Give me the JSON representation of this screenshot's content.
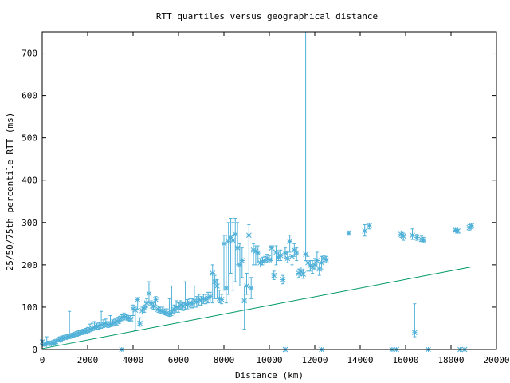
{
  "chart_data": {
    "type": "scatter",
    "title": "RTT quartiles versus geographical distance",
    "xlabel": "Distance (km)",
    "ylabel": "25/50/75th percentile RTT (ms)",
    "xlim": [
      0,
      20000
    ],
    "ylim": [
      0,
      750
    ],
    "xticks": [
      0,
      2000,
      4000,
      6000,
      8000,
      10000,
      12000,
      14000,
      16000,
      18000,
      20000
    ],
    "yticks": [
      0,
      100,
      200,
      300,
      400,
      500,
      600,
      700
    ],
    "x_tick_labels": [
      "0",
      "2000",
      "4000",
      "6000",
      "8000",
      "10000",
      "12000",
      "14000",
      "16000",
      "18000",
      "20000"
    ],
    "y_tick_labels": [
      "0",
      "100",
      "200",
      "300",
      "400",
      "500",
      "600",
      "700"
    ],
    "grid": false,
    "legend": "none",
    "colors": {
      "points": "#4fb0d8",
      "line": "#009966",
      "axes": "#000000"
    },
    "line": {
      "x": [
        0,
        18900
      ],
      "y": [
        2,
        195
      ]
    },
    "series": [
      {
        "points": [
          [
            0,
            18,
            12,
            22
          ],
          [
            100,
            12,
            8,
            18
          ],
          [
            200,
            14,
            10,
            30
          ],
          [
            300,
            15,
            10,
            20
          ],
          [
            400,
            13,
            10,
            18
          ],
          [
            500,
            16,
            12,
            22
          ],
          [
            600,
            18,
            14,
            24
          ],
          [
            700,
            22,
            18,
            28
          ],
          [
            800,
            25,
            20,
            30
          ],
          [
            900,
            27,
            22,
            32
          ],
          [
            1000,
            28,
            24,
            34
          ],
          [
            1100,
            30,
            25,
            36
          ],
          [
            1200,
            31,
            26,
            90
          ],
          [
            1300,
            33,
            28,
            38
          ],
          [
            1400,
            34,
            30,
            40
          ],
          [
            1500,
            36,
            31,
            42
          ],
          [
            1600,
            38,
            33,
            44
          ],
          [
            1700,
            40,
            35,
            46
          ],
          [
            1800,
            41,
            36,
            48
          ],
          [
            1900,
            43,
            38,
            50
          ],
          [
            2000,
            45,
            40,
            52
          ],
          [
            2100,
            48,
            42,
            60
          ],
          [
            2200,
            50,
            44,
            62
          ],
          [
            2300,
            52,
            46,
            66
          ],
          [
            2400,
            54,
            48,
            62
          ],
          [
            2500,
            55,
            48,
            64
          ],
          [
            2600,
            58,
            50,
            90
          ],
          [
            2700,
            60,
            52,
            70
          ],
          [
            2800,
            62,
            54,
            72
          ],
          [
            2900,
            58,
            52,
            66
          ],
          [
            3000,
            60,
            54,
            80
          ],
          [
            3100,
            62,
            55,
            70
          ],
          [
            3200,
            64,
            57,
            72
          ],
          [
            3300,
            66,
            58,
            76
          ],
          [
            3400,
            70,
            62,
            78
          ],
          [
            3500,
            75,
            68,
            82
          ],
          [
            3600,
            78,
            70,
            86
          ],
          [
            3700,
            76,
            70,
            82
          ],
          [
            3800,
            74,
            68,
            80
          ],
          [
            3900,
            72,
            66,
            80
          ],
          [
            4000,
            96,
            80,
            105
          ],
          [
            4100,
            93,
            45,
            100
          ],
          [
            4200,
            118,
            95,
            122
          ],
          [
            4300,
            62,
            55,
            75
          ],
          [
            4400,
            92,
            84,
            100
          ],
          [
            4500,
            98,
            88,
            105
          ],
          [
            4600,
            110,
            100,
            120
          ],
          [
            4700,
            132,
            110,
            160
          ],
          [
            4800,
            108,
            98,
            115
          ],
          [
            4900,
            102,
            95,
            110
          ],
          [
            5000,
            118,
            105,
            125
          ],
          [
            5100,
            95,
            88,
            102
          ],
          [
            5200,
            92,
            85,
            100
          ],
          [
            5300,
            90,
            84,
            100
          ],
          [
            5400,
            88,
            82,
            96
          ],
          [
            5500,
            86,
            80,
            96
          ],
          [
            5600,
            84,
            78,
            120
          ],
          [
            5700,
            88,
            80,
            150
          ],
          [
            5800,
            95,
            85,
            105
          ],
          [
            5900,
            100,
            88,
            115
          ],
          [
            6000,
            98,
            88,
            110
          ],
          [
            6100,
            105,
            95,
            115
          ],
          [
            6200,
            102,
            92,
            110
          ],
          [
            6300,
            108,
            95,
            160
          ],
          [
            6400,
            106,
            96,
            118
          ],
          [
            6500,
            110,
            100,
            120
          ],
          [
            6600,
            108,
            98,
            120
          ],
          [
            6700,
            115,
            100,
            150
          ],
          [
            6800,
            112,
            100,
            125
          ],
          [
            6900,
            118,
            105,
            130
          ],
          [
            7000,
            115,
            104,
            125
          ],
          [
            7100,
            120,
            108,
            130
          ],
          [
            7200,
            118,
            108,
            130
          ],
          [
            7300,
            122,
            110,
            135
          ],
          [
            7400,
            125,
            112,
            135
          ],
          [
            7500,
            180,
            110,
            200
          ],
          [
            7600,
            160,
            120,
            175
          ],
          [
            7700,
            150,
            120,
            165
          ],
          [
            7800,
            120,
            110,
            140
          ],
          [
            7900,
            118,
            108,
            130
          ],
          [
            8000,
            250,
            140,
            270
          ],
          [
            8100,
            145,
            110,
            270
          ],
          [
            8200,
            255,
            130,
            300
          ],
          [
            8300,
            265,
            180,
            310
          ],
          [
            8400,
            258,
            140,
            300
          ],
          [
            8500,
            272,
            160,
            310
          ],
          [
            8600,
            240,
            200,
            300
          ],
          [
            8700,
            200,
            150,
            250
          ],
          [
            8800,
            210,
            170,
            240
          ],
          [
            8900,
            115,
            48,
            150
          ],
          [
            9000,
            150,
            130,
            180
          ],
          [
            9100,
            270,
            150,
            295
          ],
          [
            9200,
            145,
            120,
            170
          ],
          [
            9300,
            235,
            200,
            250
          ],
          [
            9400,
            232,
            200,
            245
          ],
          [
            9500,
            228,
            205,
            245
          ],
          [
            9600,
            205,
            195,
            215
          ],
          [
            9700,
            208,
            200,
            218
          ],
          [
            9800,
            210,
            205,
            220
          ],
          [
            9900,
            215,
            205,
            225
          ],
          [
            10000,
            212,
            205,
            222
          ],
          [
            10100,
            240,
            210,
            245
          ],
          [
            10200,
            175,
            165,
            185
          ],
          [
            10300,
            230,
            200,
            245
          ],
          [
            10400,
            218,
            210,
            230
          ],
          [
            10500,
            222,
            210,
            235
          ],
          [
            10600,
            165,
            155,
            175
          ],
          [
            10700,
            228,
            215,
            240
          ],
          [
            10800,
            215,
            205,
            230
          ],
          [
            10900,
            255,
            230,
            270
          ],
          [
            11000,
            220,
            200,
            750
          ],
          [
            11100,
            235,
            220,
            250
          ],
          [
            11200,
            228,
            210,
            240
          ],
          [
            11300,
            180,
            170,
            190
          ],
          [
            11400,
            185,
            175,
            195
          ],
          [
            11500,
            178,
            168,
            188
          ],
          [
            11600,
            225,
            210,
            750
          ],
          [
            11700,
            205,
            185,
            220
          ],
          [
            11800,
            198,
            185,
            210
          ],
          [
            11900,
            195,
            180,
            210
          ],
          [
            12000,
            200,
            190,
            215
          ],
          [
            12100,
            210,
            195,
            230
          ],
          [
            12200,
            190,
            175,
            205
          ],
          [
            12300,
            205,
            190,
            220
          ],
          [
            12400,
            215,
            205,
            222
          ],
          [
            12500,
            212,
            205,
            220
          ],
          [
            13500,
            275,
            270,
            280
          ],
          [
            14200,
            280,
            268,
            295
          ],
          [
            14400,
            292,
            285,
            298
          ],
          [
            15800,
            272,
            265,
            280
          ],
          [
            15900,
            268,
            258,
            275
          ],
          [
            16300,
            270,
            260,
            285
          ],
          [
            16400,
            40,
            30,
            108
          ],
          [
            16500,
            265,
            258,
            272
          ],
          [
            16700,
            260,
            255,
            268
          ],
          [
            16800,
            258,
            252,
            265
          ],
          [
            18200,
            282,
            278,
            285
          ],
          [
            18300,
            280,
            275,
            284
          ],
          [
            18800,
            288,
            282,
            295
          ],
          [
            18900,
            292,
            286,
            298
          ],
          [
            3500,
            0,
            0,
            0
          ],
          [
            10700,
            0,
            0,
            0
          ],
          [
            12300,
            0,
            0,
            0
          ],
          [
            15400,
            0,
            0,
            0
          ],
          [
            15600,
            0,
            0,
            0
          ],
          [
            17000,
            0,
            0,
            0
          ],
          [
            18400,
            0,
            0,
            0
          ],
          [
            18600,
            0,
            0,
            0
          ]
        ]
      }
    ]
  }
}
